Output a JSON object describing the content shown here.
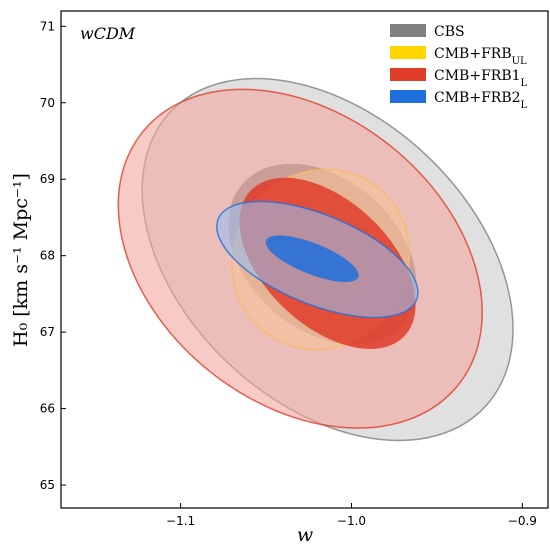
{
  "chart_data": {
    "type": "contour",
    "model_label": "wCDM",
    "xlabel": "w",
    "ylabel": "H₀ [km s⁻¹ Mpc⁻¹]",
    "xlim": [
      -1.17,
      -0.885
    ],
    "ylim": [
      64.7,
      71.2
    ],
    "x_ticks": [
      -1.1,
      -1.0,
      -0.9
    ],
    "x_tick_labels": [
      "−1.1",
      "−1.0",
      "−0.9"
    ],
    "y_ticks": [
      65,
      66,
      67,
      68,
      69,
      70,
      71
    ],
    "y_tick_labels": [
      "65",
      "66",
      "67",
      "68",
      "69",
      "70",
      "71"
    ],
    "grid": false,
    "legend_position": "top-right",
    "series": [
      {
        "name": "CBS",
        "color": "#808080",
        "contours": [
          {
            "level": "2sigma",
            "center": [
              -1.014,
              67.95
            ],
            "major": [
              -1.108,
              69.88,
              -0.924,
              66.02
            ],
            "minor_w": -0.946,
            "minor_h": 69.1
          },
          {
            "level": "1sigma",
            "center": [
              -1.017,
              68.02
            ],
            "major": [
              -1.065,
              68.95,
              -0.972,
              67.1
            ],
            "minor_w": -0.985,
            "minor_h": 68.7
          }
        ]
      },
      {
        "name": "CMB+FRB_UL",
        "color": "#FFD700",
        "contours": [
          {
            "level": "2sigma",
            "center": [
              -1.018,
              67.95
            ],
            "major": [
              -1.058,
              68.65,
              -0.978,
              67.25
            ],
            "minor_w": -0.968,
            "minor_h": 68.6
          },
          {
            "level": "1sigma",
            "center": [
              -1.02,
              67.97
            ],
            "major": [
              -1.046,
              68.38,
              -0.993,
              67.56
            ],
            "minor_w": -0.99,
            "minor_h": 68.2
          }
        ]
      },
      {
        "name": "CMB+FRB1_L",
        "color": "#E03C28",
        "contours": [
          {
            "level": "2sigma",
            "center": [
              -1.03,
              67.96
            ],
            "major": [
              -1.125,
              69.55,
              -0.94,
              66.25
            ],
            "minor_w": -0.978,
            "minor_h": 69.45
          },
          {
            "level": "1sigma",
            "center": [
              -1.014,
              67.9
            ],
            "major": [
              -1.06,
              68.85,
              -0.97,
              66.95
            ],
            "minor_w": -0.994,
            "minor_h": 68.6
          }
        ]
      },
      {
        "name": "CMB+FRB2_L",
        "color": "#1E6FDC",
        "contours": [
          {
            "level": "2sigma",
            "center": [
              -1.02,
              67.95
            ],
            "major": [
              -1.078,
              68.48,
              -0.962,
              67.42
            ],
            "minor_w": -1.0,
            "minor_h": 68.4
          },
          {
            "level": "1sigma",
            "center": [
              -1.023,
              67.96
            ],
            "major": [
              -1.05,
              68.2,
              -0.996,
              67.72
            ],
            "minor_w": -1.02,
            "minor_h": 68.15
          }
        ]
      }
    ]
  }
}
